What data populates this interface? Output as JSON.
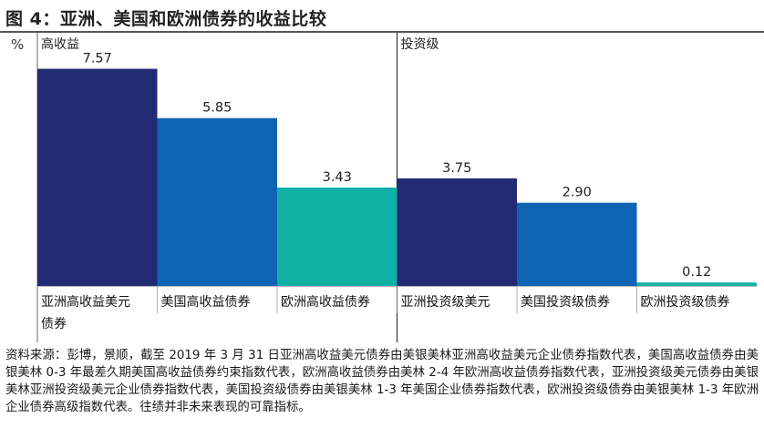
{
  "title": "图 4：亚洲、美国和欧洲债券的收益比较",
  "chart_data": {
    "type": "bar",
    "y_unit": "%",
    "ylim": [
      0,
      8
    ],
    "grid": false,
    "groups": [
      {
        "label": "高收益",
        "category_indices": [
          0,
          1,
          2
        ]
      },
      {
        "label": "投资级",
        "category_indices": [
          3,
          4,
          5
        ]
      }
    ],
    "categories": [
      "亚洲高收益美元债券",
      "美国高收益债券",
      "欧洲高收益债券",
      "亚洲投资级美元",
      "美国投资级债券",
      "欧洲投资级债券"
    ],
    "values": [
      7.57,
      5.85,
      3.43,
      3.75,
      2.9,
      0.12
    ],
    "value_labels": [
      "7.57",
      "5.85",
      "3.43",
      "3.75",
      "2.90",
      "0.12"
    ],
    "colors": [
      "#232a74",
      "#0e65b3",
      "#11b1a5",
      "#232a74",
      "#0e65b3",
      "#11b1a5"
    ]
  },
  "source_text": "资料来源：彭博，景顺，截至 2019 年 3 月 31 日亚洲高收益美元债券由美银美林亚洲高收益美元企业债券指数代表，美国高收益债券由美银美林 0-3 年最差久期美国高收益债券约束指数代表，欧洲高收益债券由美林 2-4 年欧洲高收益债券指数代表，亚洲投资级美元债券由美银美林亚洲投资级美元企业债券指数代表，美国投资级债券由美银美林 1-3 年美国企业债券指数代表，欧洲投资级债券由美银美林 1-3 年欧洲企业债券高级指数代表。往绩并非未来表现的可靠指标。"
}
